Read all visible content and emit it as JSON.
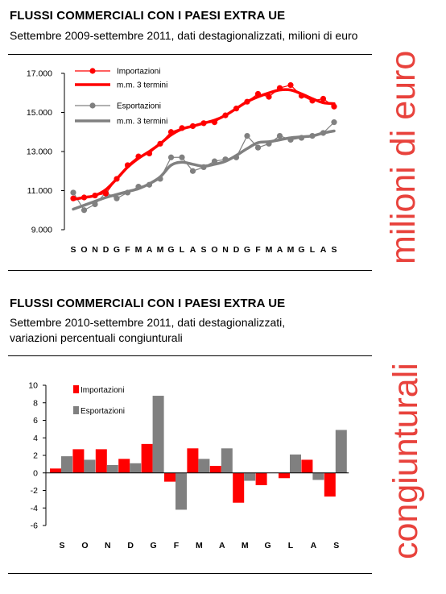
{
  "chart_data": [
    {
      "type": "line",
      "title": "FLUSSI COMMERCIALI CON I PAESI EXTRA UE",
      "subtitle": "Settembre 2009-settembre 2011, dati destagionalizzati, milioni di euro",
      "side_label": "milioni di euro",
      "categories": [
        "S",
        "O",
        "N",
        "D",
        "G",
        "F",
        "M",
        "A",
        "M",
        "G",
        "L",
        "A",
        "S",
        "O",
        "N",
        "D",
        "G",
        "F",
        "M",
        "A",
        "M",
        "G",
        "L",
        "A",
        "S"
      ],
      "ylim": [
        9000,
        17000
      ],
      "yticks": [
        "9.000",
        "11.000",
        "13.000",
        "15.000",
        "17.000"
      ],
      "ytick_values": [
        9000,
        11000,
        13000,
        15000,
        17000
      ],
      "grid": false,
      "legend": "top-left",
      "series": [
        {
          "name": "Importazioni",
          "color": "#ff0000",
          "style": "markers",
          "values": [
            10600,
            10650,
            10750,
            10850,
            11600,
            12300,
            12750,
            12900,
            13400,
            14000,
            14200,
            14300,
            14450,
            14500,
            14850,
            15200,
            15550,
            15950,
            15800,
            16250,
            16400,
            15850,
            15600,
            15700,
            15300
          ]
        },
        {
          "name": "m.m. 3 termini",
          "color": "#ff0000",
          "style": "smooth",
          "values": [
            10550,
            10650,
            10750,
            11050,
            11600,
            12200,
            12650,
            13000,
            13400,
            13850,
            14150,
            14300,
            14450,
            14600,
            14850,
            15200,
            15550,
            15800,
            16000,
            16150,
            16150,
            15950,
            15700,
            15500,
            15450
          ]
        },
        {
          "name": "Esportazioni",
          "color": "#808080",
          "style": "markers",
          "values": [
            10900,
            10000,
            10300,
            10900,
            10600,
            10900,
            11200,
            11300,
            11600,
            12700,
            12700,
            12000,
            12200,
            12500,
            12600,
            12700,
            13800,
            13200,
            13400,
            13800,
            13600,
            13700,
            13800,
            13950,
            14500
          ]
        },
        {
          "name": "m.m. 3 termini",
          "color": "#808080",
          "style": "smooth",
          "values": [
            10050,
            10250,
            10450,
            10650,
            10800,
            10950,
            11100,
            11350,
            11700,
            12300,
            12450,
            12350,
            12250,
            12350,
            12500,
            12800,
            13150,
            13450,
            13500,
            13600,
            13700,
            13750,
            13800,
            13950,
            14050
          ]
        }
      ]
    },
    {
      "type": "bar",
      "title": "FLUSSI COMMERCIALI CON I PAESI EXTRA UE",
      "subtitle_lines": [
        "Settembre 2010-settembre 2011, dati destagionalizzati,",
        "variazioni percentuali congiunturali"
      ],
      "side_label": "congiunturali",
      "categories": [
        "S",
        "O",
        "N",
        "D",
        "G",
        "F",
        "M",
        "A",
        "M",
        "G",
        "L",
        "A",
        "S"
      ],
      "ylim": [
        -6,
        10
      ],
      "yticks": [
        "-6",
        "-4",
        "-2",
        "0",
        "2",
        "4",
        "6",
        "8",
        "10"
      ],
      "ytick_values": [
        -6,
        -4,
        -2,
        0,
        2,
        4,
        6,
        8,
        10
      ],
      "grid": false,
      "legend": "top-left",
      "series": [
        {
          "name": "Importazioni",
          "color": "#ff0000",
          "values": [
            0.5,
            2.7,
            2.7,
            1.6,
            3.3,
            -1.0,
            2.8,
            0.8,
            -3.4,
            -1.4,
            -0.6,
            1.5,
            -2.7
          ]
        },
        {
          "name": "Esportazioni",
          "color": "#808080",
          "values": [
            1.9,
            1.5,
            0.9,
            1.1,
            8.8,
            -4.2,
            1.6,
            2.8,
            -0.9,
            0.0,
            2.1,
            -0.8,
            4.9
          ]
        }
      ]
    }
  ]
}
